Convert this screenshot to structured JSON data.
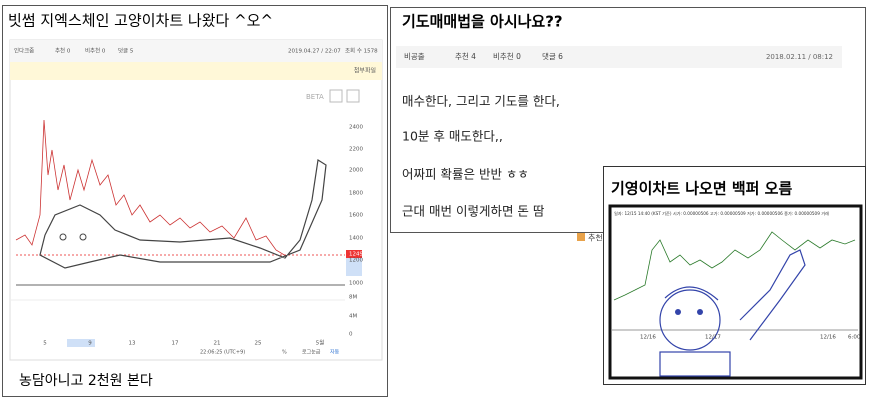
{
  "left": {
    "title": "빗썸 지엑스체인 고양이차트 나왔다 ^오^",
    "meta": [
      "인다크줌",
      "추천 0",
      "비추천 0",
      "덧글 5",
      "2019.04.27 / 22:07",
      "조회 수 1578"
    ],
    "attach": "첨부파일",
    "beta": "BETA",
    "price_labels": [
      "2400",
      "2200",
      "2000",
      "1800",
      "1600",
      "1400",
      "1249",
      "1200",
      "1000",
      "8M",
      "4M",
      "0"
    ],
    "date_labels": [
      "5",
      "9",
      "13",
      "17",
      "21",
      "25",
      "5월"
    ],
    "footer": [
      "22:06:25 (UTC+9)",
      "%",
      "로그눈금",
      "자동"
    ],
    "caption": "농담아니고 2천원 본다"
  },
  "middle": {
    "title": "기도매매법을 아시나요??",
    "meta": [
      "비공출",
      "추천 4",
      "비추천 0",
      "댓글 6"
    ],
    "date": "2018.02.11 / 08:12",
    "lines": [
      "매수한다, 그리고 기도를 한다,",
      "10분 후 매도한다,,",
      "어짜피 확률은 반반 ㅎㅎ",
      "근대 매번 이렇게하면 돈 땀"
    ],
    "button": "추천"
  },
  "right": {
    "title": "기영이차트 나오면 백퍼 오름",
    "chart_header": "일자: 12/15 14:40 (KST 기준) 시가: 0.00000506 고가: 0.00000509 저가: 0.00000506 종가: 0.00000509 거래",
    "date_labels": [
      "12/16",
      "12/17",
      "12/16",
      "6:00"
    ]
  }
}
